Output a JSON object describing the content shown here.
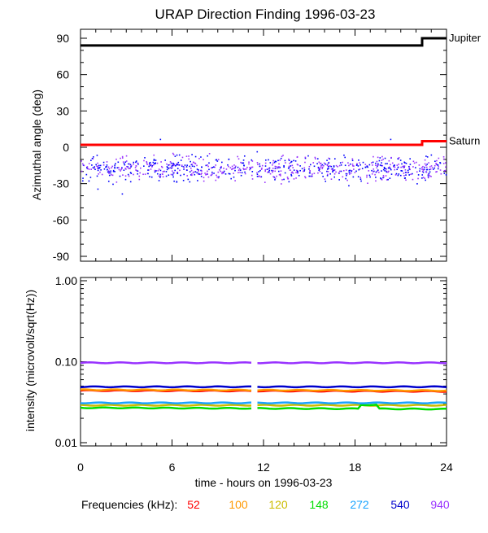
{
  "chart_data": [
    {
      "panel": "top",
      "type": "scatter",
      "title": "URAP Direction Finding  1996-03-23",
      "xlabel": "",
      "ylabel": "Azimuthal angle (deg)",
      "xlim": [
        0,
        24
      ],
      "ylim": [
        -90,
        90
      ],
      "yticks": [
        90,
        60,
        30,
        0,
        -30,
        -60,
        -90
      ],
      "reference_lines": [
        {
          "name": "Jupiter",
          "color": "#000000",
          "segments": [
            {
              "x": [
                0,
                22.4
              ],
              "y": 84
            },
            {
              "x": [
                22.6,
                24
              ],
              "y": 90
            }
          ]
        },
        {
          "name": "Saturn",
          "color": "#ff0000",
          "segments": [
            {
              "x": [
                0,
                22.4
              ],
              "y": 2
            },
            {
              "x": [
                22.6,
                24
              ],
              "y": 5
            }
          ]
        }
      ],
      "scatter_band": {
        "y_center": -17,
        "y_spread": 10,
        "x_range": [
          0,
          24
        ],
        "gap": [
          11.3,
          11.5
        ],
        "colors": [
          "#0000ff",
          "#9933ff"
        ]
      }
    },
    {
      "panel": "bottom",
      "type": "line",
      "xlabel": "time - hours on 1996-03-23",
      "ylabel": "intensity (microvolt/sqrt(Hz))",
      "xlim": [
        0,
        24
      ],
      "ylim": [
        0.01,
        1.0
      ],
      "yscale": "log",
      "yticks": [
        "1.00",
        "0.10",
        "0.01"
      ],
      "xticks": [
        0,
        6,
        12,
        18,
        24
      ],
      "gap": [
        11.3,
        11.5
      ],
      "series": [
        {
          "name": "52",
          "color": "#ff0000",
          "values": [
            0.044,
            0.043
          ]
        },
        {
          "name": "100",
          "color": "#ff9900",
          "values": [
            0.045,
            0.044
          ]
        },
        {
          "name": "120",
          "color": "#ccbb00",
          "values": [
            0.029,
            0.029
          ]
        },
        {
          "name": "148",
          "color": "#00dd00",
          "values": [
            0.027,
            0.026
          ]
        },
        {
          "name": "272",
          "color": "#1aa3ff",
          "values": [
            0.031,
            0.031
          ]
        },
        {
          "name": "540",
          "color": "#0000cc",
          "values": [
            0.049,
            0.049
          ]
        },
        {
          "name": "940",
          "color": "#9933ff",
          "values": [
            0.097,
            0.097
          ]
        }
      ],
      "legend": {
        "label": "Frequencies (kHz):",
        "placement": "bottom"
      }
    }
  ]
}
